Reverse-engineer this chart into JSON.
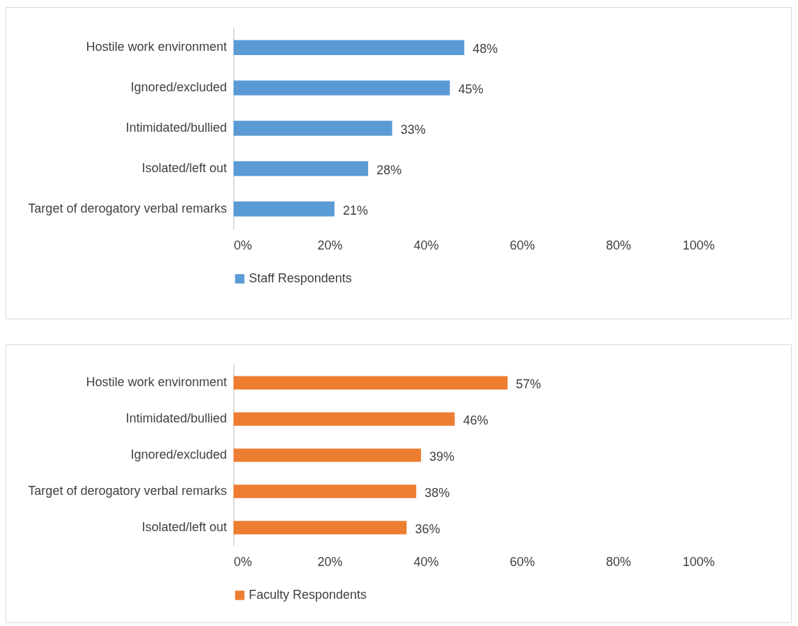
{
  "chart_data": [
    {
      "type": "bar",
      "orientation": "horizontal",
      "categories": [
        "Hostile work environment",
        "Ignored/excluded",
        "Intimidated/bullied",
        "Isolated/left out",
        "Target of derogatory verbal remarks"
      ],
      "series": [
        {
          "name": "Staff Respondents",
          "color": "#5b9bd5",
          "values": [
            48,
            45,
            33,
            28,
            21
          ],
          "value_labels": [
            "48%",
            "45%",
            "33%",
            "28%",
            "21%"
          ]
        }
      ],
      "xlim": [
        0,
        100
      ],
      "xticks": [
        {
          "value": 0,
          "label": "0%"
        },
        {
          "value": 20,
          "label": "20%"
        },
        {
          "value": 40,
          "label": "40%"
        },
        {
          "value": 60,
          "label": "60%"
        },
        {
          "value": 80,
          "label": "80%"
        },
        {
          "value": 100,
          "label": "100%"
        }
      ],
      "grid": false,
      "legend": "bottom"
    },
    {
      "type": "bar",
      "orientation": "horizontal",
      "categories": [
        "Hostile work environment",
        "Intimidated/bullied",
        "Ignored/excluded",
        "Target of derogatory verbal remarks",
        "Isolated/left out"
      ],
      "series": [
        {
          "name": "Faculty Respondents",
          "color": "#ed7d31",
          "values": [
            57,
            46,
            39,
            38,
            36
          ],
          "value_labels": [
            "57%",
            "46%",
            "39%",
            "38%",
            "36%"
          ]
        }
      ],
      "xlim": [
        0,
        100
      ],
      "xticks": [
        {
          "value": 0,
          "label": "0%"
        },
        {
          "value": 20,
          "label": "20%"
        },
        {
          "value": 40,
          "label": "40%"
        },
        {
          "value": 60,
          "label": "60%"
        },
        {
          "value": 80,
          "label": "80%"
        },
        {
          "value": 100,
          "label": "100%"
        }
      ],
      "grid": false,
      "legend": "bottom"
    }
  ]
}
